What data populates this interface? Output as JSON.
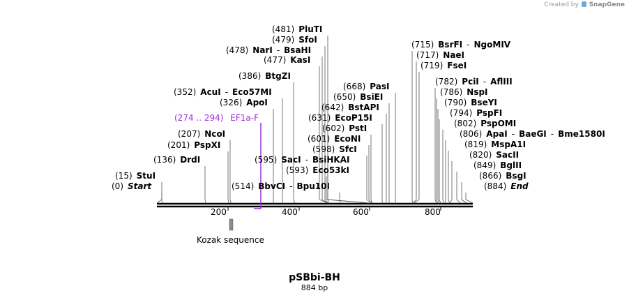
{
  "credit": {
    "prefix": "Created by",
    "brand": "SnapGene"
  },
  "plasmid": {
    "name": "pSBbi-BH",
    "length": "884 bp",
    "total_bp": 884
  },
  "axis": {
    "ticks": [
      "200",
      "400",
      "600",
      "800"
    ]
  },
  "primer": {
    "range": "(274 .. 294)",
    "name": "EF1a-F",
    "color": "#9b30d9"
  },
  "feature": {
    "name": "Kozak sequence",
    "color": "#8c8c8c"
  },
  "sites": [
    {
      "pos": "(0)",
      "parts": [
        "Start"
      ],
      "special": true
    },
    {
      "pos": "(15)",
      "parts": [
        "StuI"
      ]
    },
    {
      "pos": "(136)",
      "parts": [
        "DrdI"
      ]
    },
    {
      "pos": "(201)",
      "parts": [
        "PspXI"
      ]
    },
    {
      "pos": "(207)",
      "parts": [
        "NcoI"
      ]
    },
    {
      "pos": "(326)",
      "parts": [
        "ApoI"
      ]
    },
    {
      "pos": "(352)",
      "parts": [
        "AcuI",
        "Eco57MI"
      ]
    },
    {
      "pos": "(386)",
      "parts": [
        "BtgZI"
      ]
    },
    {
      "pos": "(477)",
      "parts": [
        "KasI"
      ]
    },
    {
      "pos": "(478)",
      "parts": [
        "NarI",
        "BsaHI"
      ]
    },
    {
      "pos": "(479)",
      "parts": [
        "SfoI"
      ]
    },
    {
      "pos": "(481)",
      "parts": [
        "PluTI"
      ]
    },
    {
      "pos": "(514)",
      "parts": [
        "BbvCI",
        "Bpu10I"
      ]
    },
    {
      "pos": "(593)",
      "parts": [
        "Eco53kI"
      ]
    },
    {
      "pos": "(595)",
      "parts": [
        "SacI",
        "BsiHKAI"
      ]
    },
    {
      "pos": "(598)",
      "parts": [
        "SfcI"
      ]
    },
    {
      "pos": "(601)",
      "parts": [
        "EcoNI"
      ]
    },
    {
      "pos": "(602)",
      "parts": [
        "PstI"
      ]
    },
    {
      "pos": "(631)",
      "parts": [
        "EcoP15I"
      ]
    },
    {
      "pos": "(642)",
      "parts": [
        "BstAPI"
      ]
    },
    {
      "pos": "(650)",
      "parts": [
        "BsiEI"
      ]
    },
    {
      "pos": "(668)",
      "parts": [
        "PasI"
      ]
    },
    {
      "pos": "(715)",
      "parts": [
        "BsrFI",
        "NgoMIV"
      ]
    },
    {
      "pos": "(717)",
      "parts": [
        "NaeI"
      ]
    },
    {
      "pos": "(719)",
      "parts": [
        "FseI"
      ]
    },
    {
      "pos": "(782)",
      "parts": [
        "PciI",
        "AflIII"
      ]
    },
    {
      "pos": "(786)",
      "parts": [
        "NspI"
      ]
    },
    {
      "pos": "(790)",
      "parts": [
        "BseYI"
      ]
    },
    {
      "pos": "(794)",
      "parts": [
        "PspFI"
      ]
    },
    {
      "pos": "(802)",
      "parts": [
        "PspOMI"
      ]
    },
    {
      "pos": "(806)",
      "parts": [
        "ApaI",
        "BaeGI",
        "Bme1580I"
      ]
    },
    {
      "pos": "(819)",
      "parts": [
        "MspA1I"
      ]
    },
    {
      "pos": "(820)",
      "parts": [
        "SacII"
      ]
    },
    {
      "pos": "(849)",
      "parts": [
        "BglII"
      ]
    },
    {
      "pos": "(866)",
      "parts": [
        "BsgI"
      ]
    },
    {
      "pos": "(884)",
      "parts": [
        "End"
      ],
      "special": true
    }
  ]
}
